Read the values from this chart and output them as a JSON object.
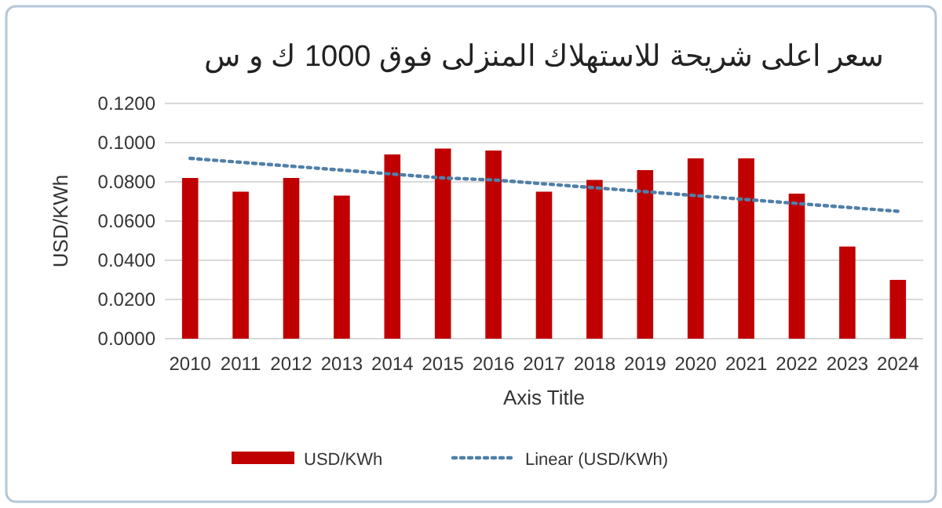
{
  "chart_data": {
    "type": "bar",
    "title": "سعر اعلى شريحة للاستهلاك المنزلى فوق 1000 ك و س",
    "xlabel": "Axis Title",
    "ylabel": "USD/KWh",
    "categories": [
      "2010",
      "2011",
      "2012",
      "2013",
      "2014",
      "2015",
      "2016",
      "2017",
      "2018",
      "2019",
      "2020",
      "2021",
      "2022",
      "2023",
      "2024"
    ],
    "series": [
      {
        "name": "USD/KWh",
        "color": "#c00000",
        "values": [
          0.082,
          0.075,
          0.082,
          0.073,
          0.094,
          0.097,
          0.096,
          0.075,
          0.081,
          0.086,
          0.092,
          0.092,
          0.074,
          0.047,
          0.03
        ]
      },
      {
        "name": "Linear (USD/KWh)",
        "type": "line",
        "color": "#4f7fa8",
        "line_style": "dotted",
        "values": [
          0.092,
          0.09,
          0.088,
          0.086,
          0.084,
          0.082,
          0.081,
          0.079,
          0.077,
          0.075,
          0.073,
          0.071,
          0.069,
          0.067,
          0.065
        ]
      }
    ],
    "ylim": [
      0,
      0.12
    ],
    "yticks": [
      {
        "value": 0,
        "label": "0.0000"
      },
      {
        "value": 0.02,
        "label": "0.0200"
      },
      {
        "value": 0.04,
        "label": "0.0400"
      },
      {
        "value": 0.06,
        "label": "0.0600"
      },
      {
        "value": 0.08,
        "label": "0.0800"
      },
      {
        "value": 0.1,
        "label": "0.1000"
      },
      {
        "value": 0.12,
        "label": "0.1200"
      }
    ],
    "grid": "y",
    "legend": "bottom"
  }
}
